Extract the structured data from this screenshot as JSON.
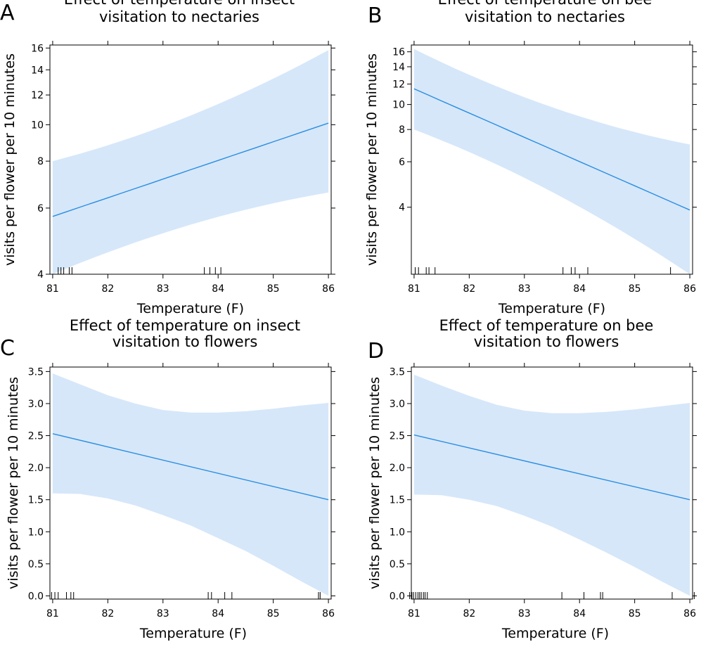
{
  "chart_data": [
    {
      "panel": "A",
      "type": "line",
      "title_lines": [
        "Effect of temperature on insect",
        "visitation to nectaries"
      ],
      "xlabel": "Temperature (F)",
      "ylabel": "visits per flower  per 10 minutes",
      "y_scale": "log",
      "xlim": [
        80.95,
        86.05
      ],
      "ylim": [
        4,
        16.3
      ],
      "xticks": [
        81,
        82,
        83,
        84,
        85,
        86
      ],
      "yticks": [
        4,
        6,
        8,
        10,
        12,
        14,
        16
      ],
      "x": [
        81,
        86
      ],
      "fit": [
        5.7,
        10.1
      ],
      "ci_lower": [
        4.0,
        6.6
      ],
      "ci_upper": [
        8.0,
        15.8
      ],
      "rug": [
        81.1,
        81.15,
        81.2,
        81.3,
        81.35,
        83.75,
        83.85,
        83.95,
        84.05
      ]
    },
    {
      "panel": "B",
      "type": "line",
      "title_lines": [
        "Effect of temperature on bee",
        "visitation to nectaries"
      ],
      "xlabel": "Temperature (F)",
      "ylabel": "visits per flower  per 10 minutes",
      "y_scale": "log",
      "xlim": [
        80.95,
        86.05
      ],
      "ylim": [
        2.2,
        17.0
      ],
      "xticks": [
        81,
        82,
        83,
        84,
        85,
        86
      ],
      "yticks": [
        4,
        6,
        8,
        10,
        12,
        14,
        16
      ],
      "x": [
        81,
        86
      ],
      "fit": [
        11.5,
        3.9
      ],
      "ci_lower": [
        8.0,
        2.2
      ],
      "ci_upper": [
        16.4,
        7.0
      ],
      "rug": [
        81.02,
        81.08,
        81.22,
        81.27,
        81.38,
        83.7,
        83.85,
        83.92,
        84.15,
        85.65,
        86.05
      ]
    },
    {
      "panel": "C",
      "type": "line",
      "title_lines": [
        "Effect of temperature on insect",
        "visitation to flowers"
      ],
      "xlabel": "Temperature (F)",
      "ylabel": "visits per flower  per 10 minutes",
      "y_scale": "linear",
      "xlim": [
        80.95,
        86.05
      ],
      "ylim": [
        -0.05,
        3.57
      ],
      "xticks": [
        81,
        82,
        83,
        84,
        85,
        86
      ],
      "yticks": [
        0.0,
        0.5,
        1.0,
        1.5,
        2.0,
        2.5,
        3.0,
        3.5
      ],
      "ytick_labels": [
        "0.0",
        "0.5",
        "1.0",
        "1.5",
        "2.0",
        "2.5",
        "3.0",
        "3.5"
      ],
      "x": [
        81,
        86
      ],
      "fit": [
        2.53,
        1.5
      ],
      "ci_lower_x": [
        81,
        81.5,
        82,
        82.5,
        83,
        83.5,
        84,
        84.5,
        85,
        85.5,
        86
      ],
      "ci_lower": [
        1.6,
        1.59,
        1.52,
        1.41,
        1.26,
        1.1,
        0.9,
        0.7,
        0.47,
        0.23,
        0.0
      ],
      "ci_upper_x": [
        81,
        81.5,
        82,
        82.5,
        83,
        83.5,
        84,
        84.5,
        85,
        85.5,
        86
      ],
      "ci_upper": [
        3.47,
        3.3,
        3.13,
        3.0,
        2.9,
        2.86,
        2.86,
        2.88,
        2.92,
        2.97,
        3.01
      ],
      "rug": [
        80.98,
        81.04,
        81.1,
        81.25,
        81.33,
        81.38,
        83.82,
        83.88,
        84.12,
        84.25,
        85.82,
        85.85
      ]
    },
    {
      "panel": "D",
      "type": "line",
      "title_lines": [
        "Effect of temperature on bee",
        "visitation to flowers"
      ],
      "xlabel": "Temperature (F)",
      "ylabel": "visits per flower  per 10 minutes",
      "y_scale": "linear",
      "xlim": [
        80.95,
        86.05
      ],
      "ylim": [
        -0.05,
        3.57
      ],
      "xticks": [
        81,
        82,
        83,
        84,
        85,
        86
      ],
      "yticks": [
        0.0,
        0.5,
        1.0,
        1.5,
        2.0,
        2.5,
        3.0,
        3.5
      ],
      "ytick_labels": [
        "0.0",
        "0.5",
        "1.0",
        "1.5",
        "2.0",
        "2.5",
        "3.0",
        "3.5"
      ],
      "x": [
        81,
        86
      ],
      "fit": [
        2.51,
        1.5
      ],
      "ci_lower_x": [
        81,
        81.5,
        82,
        82.5,
        83,
        83.5,
        84,
        84.5,
        85,
        85.5,
        86
      ],
      "ci_lower": [
        1.58,
        1.57,
        1.5,
        1.4,
        1.25,
        1.08,
        0.88,
        0.67,
        0.45,
        0.22,
        0.0
      ],
      "ci_upper_x": [
        81,
        81.5,
        82,
        82.5,
        83,
        83.5,
        84,
        84.5,
        85,
        85.5,
        86
      ],
      "ci_upper": [
        3.45,
        3.28,
        3.12,
        2.98,
        2.89,
        2.85,
        2.85,
        2.87,
        2.91,
        2.96,
        3.01
      ],
      "rug": [
        80.92,
        80.96,
        80.99,
        81.03,
        81.07,
        81.1,
        81.13,
        81.17,
        81.2,
        81.24,
        83.68,
        84.08,
        84.38,
        84.42,
        85.68,
        86.08
      ]
    }
  ],
  "colors": {
    "band": "#d6e7fa",
    "line": "#2a8ee0",
    "axis": "#000000"
  }
}
